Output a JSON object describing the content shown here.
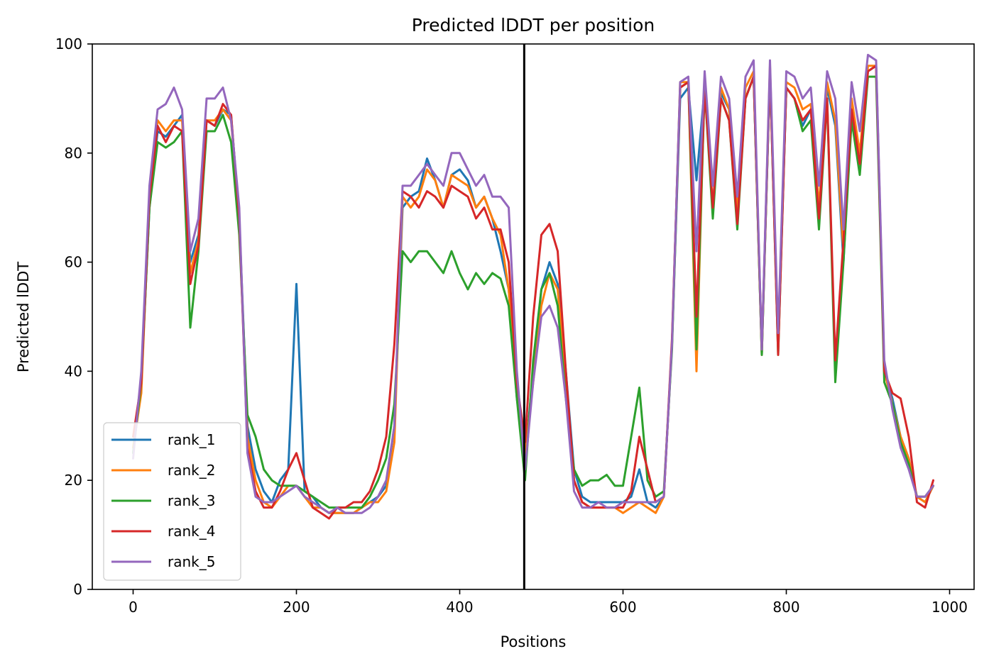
{
  "chart_data": {
    "type": "line",
    "title": "Predicted lDDT per position",
    "xlabel": "Positions",
    "ylabel": "Predicted lDDT",
    "xlim": [
      -50,
      1030
    ],
    "ylim": [
      0,
      100
    ],
    "xticks": [
      0,
      200,
      400,
      600,
      800,
      1000
    ],
    "yticks": [
      0,
      20,
      40,
      60,
      80,
      100
    ],
    "grid": false,
    "legend_position": "lower-left",
    "vertical_line": {
      "x": 479,
      "color": "#000000"
    },
    "x": [
      0,
      10,
      20,
      30,
      40,
      50,
      60,
      70,
      80,
      90,
      100,
      110,
      120,
      130,
      140,
      150,
      160,
      170,
      180,
      190,
      200,
      210,
      220,
      230,
      240,
      250,
      260,
      270,
      280,
      290,
      300,
      310,
      320,
      330,
      340,
      350,
      360,
      370,
      380,
      390,
      400,
      410,
      420,
      430,
      440,
      450,
      460,
      470,
      480,
      490,
      500,
      510,
      520,
      530,
      540,
      550,
      560,
      570,
      580,
      590,
      600,
      610,
      620,
      630,
      640,
      650,
      660,
      670,
      680,
      690,
      700,
      710,
      720,
      730,
      740,
      750,
      760,
      770,
      780,
      790,
      800,
      810,
      820,
      830,
      840,
      850,
      860,
      870,
      880,
      890,
      900,
      910,
      920,
      930,
      940,
      950,
      960,
      970,
      980
    ],
    "series": [
      {
        "name": "rank_1",
        "color": "#1f77b4",
        "values": [
          25,
          38,
          70,
          84,
          83,
          85,
          87,
          60,
          65,
          86,
          85,
          88,
          87,
          68,
          30,
          22,
          18,
          16,
          20,
          22,
          56,
          18,
          17,
          15,
          14,
          14,
          14,
          14,
          15,
          16,
          17,
          19,
          30,
          70,
          72,
          73,
          79,
          75,
          70,
          76,
          77,
          75,
          70,
          72,
          68,
          62,
          55,
          35,
          24,
          40,
          55,
          60,
          56,
          40,
          22,
          17,
          16,
          16,
          16,
          16,
          16,
          17,
          22,
          16,
          15,
          17,
          45,
          90,
          92,
          75,
          92,
          70,
          91,
          88,
          70,
          90,
          94,
          43,
          95,
          45,
          92,
          90,
          85,
          88,
          70,
          92,
          85,
          60,
          88,
          80,
          95,
          96,
          40,
          35,
          28,
          24,
          17,
          16,
          19
        ]
      },
      {
        "name": "rank_2",
        "color": "#ff7f0e",
        "values": [
          26,
          36,
          72,
          86,
          84,
          86,
          86,
          58,
          64,
          86,
          86,
          88,
          86,
          68,
          28,
          20,
          16,
          15,
          17,
          19,
          19,
          17,
          15,
          15,
          14,
          14,
          14,
          14,
          15,
          16,
          16,
          18,
          27,
          72,
          70,
          72,
          77,
          75,
          70,
          76,
          75,
          74,
          70,
          72,
          68,
          65,
          55,
          36,
          25,
          38,
          52,
          58,
          55,
          38,
          20,
          16,
          15,
          15,
          15,
          15,
          14,
          15,
          16,
          15,
          14,
          17,
          45,
          93,
          93,
          40,
          93,
          70,
          92,
          88,
          70,
          92,
          95,
          43,
          96,
          44,
          93,
          92,
          88,
          89,
          70,
          93,
          86,
          62,
          90,
          80,
          96,
          96,
          40,
          34,
          28,
          24,
          17,
          16,
          19
        ]
      },
      {
        "name": "rank_3",
        "color": "#2ca02c",
        "values": [
          25,
          38,
          70,
          82,
          81,
          82,
          84,
          48,
          62,
          84,
          84,
          87,
          82,
          65,
          32,
          28,
          22,
          20,
          19,
          19,
          19,
          18,
          17,
          16,
          15,
          15,
          15,
          15,
          15,
          17,
          20,
          24,
          34,
          62,
          60,
          62,
          62,
          60,
          58,
          62,
          58,
          55,
          58,
          56,
          58,
          57,
          52,
          35,
          20,
          42,
          55,
          58,
          52,
          35,
          22,
          19,
          20,
          20,
          21,
          19,
          19,
          28,
          37,
          20,
          17,
          18,
          44,
          92,
          93,
          44,
          92,
          68,
          90,
          86,
          66,
          90,
          94,
          43,
          95,
          43,
          92,
          90,
          84,
          86,
          66,
          90,
          38,
          60,
          86,
          76,
          94,
          94,
          38,
          34,
          27,
          23,
          17,
          17,
          19
        ]
      },
      {
        "name": "rank_4",
        "color": "#d62728",
        "values": [
          28,
          38,
          72,
          85,
          82,
          85,
          84,
          56,
          63,
          86,
          85,
          89,
          87,
          68,
          26,
          18,
          15,
          15,
          18,
          22,
          25,
          20,
          15,
          14,
          13,
          15,
          15,
          16,
          16,
          18,
          22,
          28,
          45,
          73,
          72,
          70,
          73,
          72,
          70,
          74,
          73,
          72,
          68,
          70,
          66,
          66,
          60,
          38,
          27,
          50,
          65,
          67,
          62,
          40,
          20,
          16,
          15,
          15,
          15,
          15,
          15,
          18,
          28,
          22,
          16,
          17,
          46,
          92,
          93,
          50,
          92,
          70,
          90,
          86,
          67,
          90,
          94,
          44,
          95,
          43,
          92,
          90,
          86,
          88,
          68,
          90,
          42,
          64,
          88,
          78,
          95,
          96,
          40,
          36,
          35,
          28,
          16,
          15,
          20
        ]
      },
      {
        "name": "rank_5",
        "color": "#9467bd",
        "values": [
          24,
          40,
          74,
          88,
          89,
          92,
          88,
          62,
          68,
          90,
          90,
          92,
          86,
          70,
          25,
          17,
          16,
          16,
          17,
          18,
          19,
          17,
          16,
          15,
          14,
          15,
          14,
          14,
          14,
          15,
          17,
          20,
          30,
          74,
          74,
          76,
          78,
          76,
          74,
          80,
          80,
          77,
          74,
          76,
          72,
          72,
          70,
          40,
          22,
          38,
          50,
          52,
          48,
          35,
          18,
          15,
          15,
          16,
          15,
          15,
          16,
          16,
          16,
          16,
          16,
          17,
          45,
          93,
          94,
          62,
          95,
          74,
          94,
          90,
          72,
          94,
          97,
          44,
          97,
          47,
          95,
          94,
          90,
          92,
          74,
          95,
          90,
          66,
          93,
          84,
          98,
          97,
          42,
          33,
          26,
          22,
          17,
          17,
          19
        ]
      }
    ]
  }
}
